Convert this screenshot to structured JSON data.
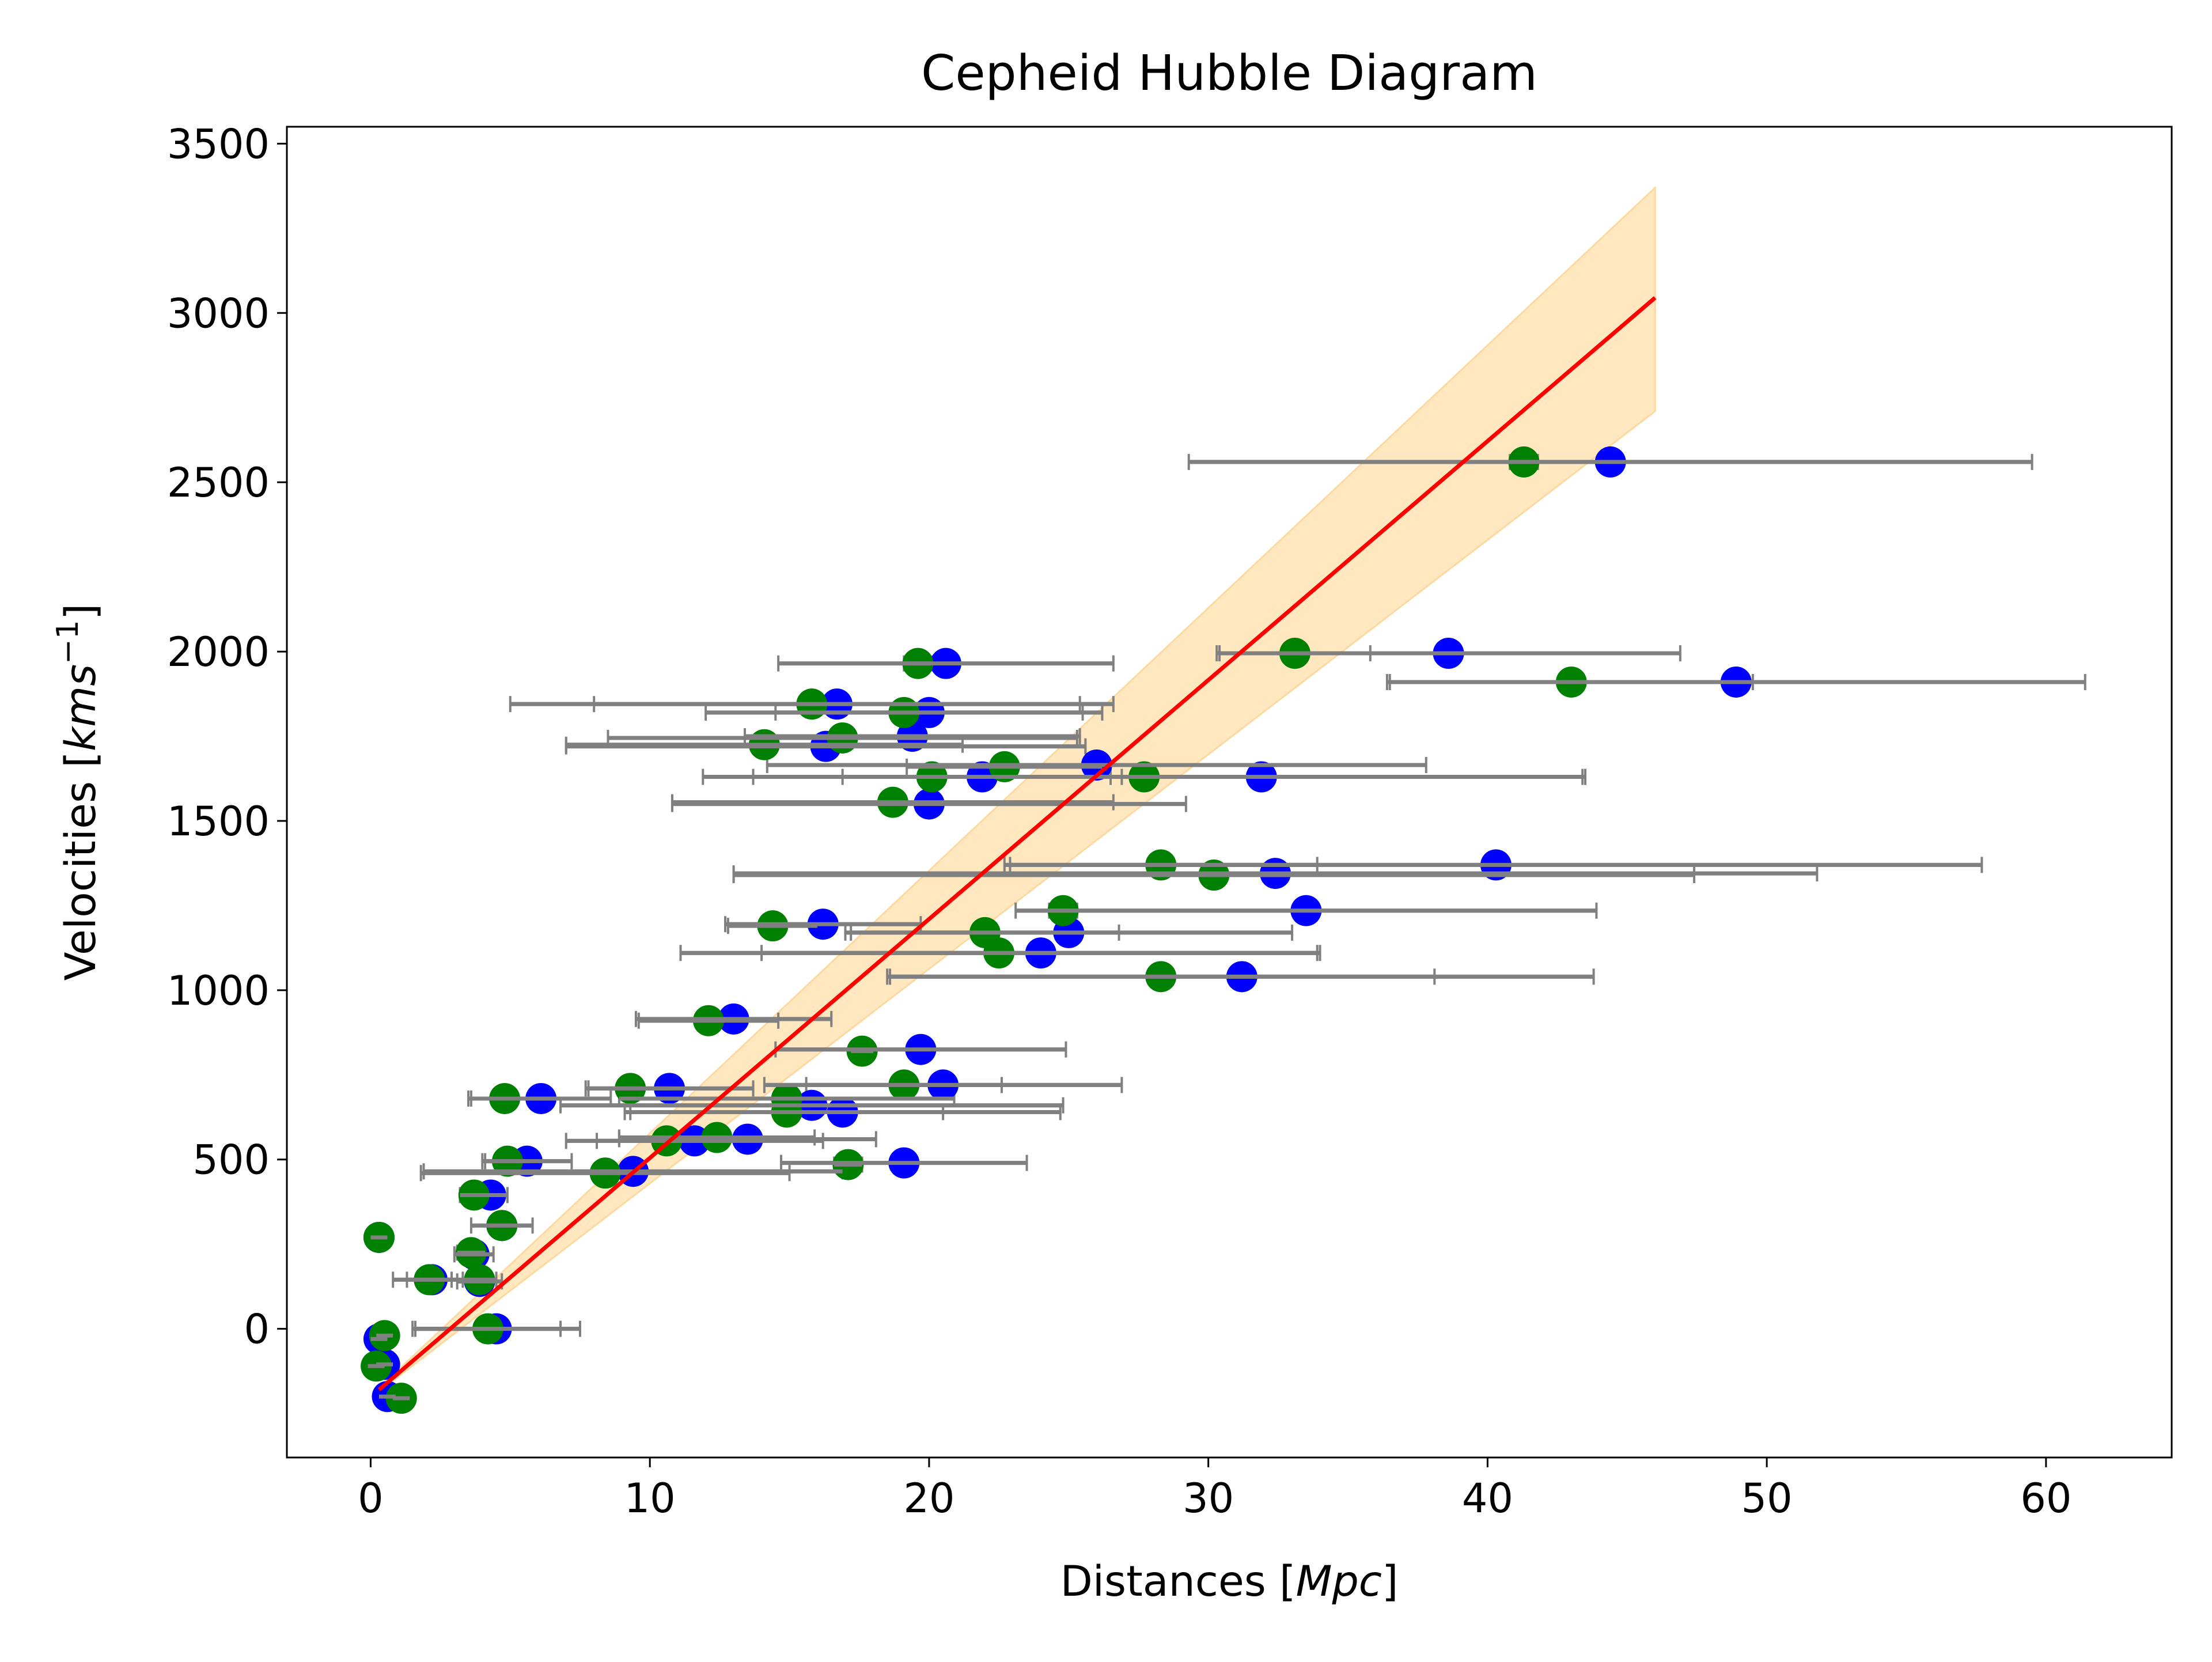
{
  "chart_data": {
    "type": "scatter",
    "title": "Cepheid Hubble Diagram",
    "xlabel": "Distances [",
    "xlabel_unit": "Mpc",
    "xlabel_close": "]",
    "ylabel": "Velocities [",
    "ylabel_unit": "kms",
    "ylabel_sup": "−1",
    "ylabel_close": "]",
    "xlim": [
      -3,
      64.5
    ],
    "ylim": [
      -380,
      3550
    ],
    "xticks": [
      0,
      10,
      20,
      30,
      40,
      50,
      60
    ],
    "yticks": [
      0,
      500,
      1000,
      1500,
      2000,
      2500,
      3000,
      3500
    ],
    "grid": false,
    "legend": "none",
    "colors": {
      "set_a": "#0000ff",
      "set_b": "#008000",
      "errorbar": "#808080",
      "fit_line": "#ff0000",
      "band": "#ffe7bf",
      "band_edge": "#fdd9a0"
    },
    "fit_line": {
      "x": [
        0.3,
        46.0
      ],
      "y": [
        -180,
        3045
      ]
    },
    "confidence_band": {
      "x": [
        0.3,
        46.0
      ],
      "lower": [
        -185,
        2710
      ],
      "upper": [
        -175,
        3370
      ]
    },
    "series": [
      {
        "color_key": "set_a",
        "points": [
          [
            0.6,
            -200,
            0.3
          ],
          [
            0.5,
            -105,
            0.3
          ],
          [
            0.3,
            -30,
            0.3
          ],
          [
            0.3,
            270,
            0.3
          ],
          [
            2.2,
            145,
            1.4
          ],
          [
            3.9,
            140,
            0.8
          ],
          [
            3.7,
            220,
            0.7
          ],
          [
            4.5,
            0,
            3.0
          ],
          [
            4.7,
            305,
            1.1
          ],
          [
            4.3,
            395,
            0.6
          ],
          [
            5.6,
            495,
            1.6
          ],
          [
            9.4,
            465,
            7.5
          ],
          [
            6.1,
            680,
            2.5
          ],
          [
            10.7,
            710,
            3.0
          ],
          [
            11.6,
            555,
            4.6
          ],
          [
            13.5,
            560,
            4.6
          ],
          [
            15.8,
            660,
            9.0
          ],
          [
            16.9,
            640,
            7.8
          ],
          [
            20.5,
            720,
            6.4
          ],
          [
            19.1,
            490,
            4.4
          ],
          [
            19.7,
            825,
            5.2
          ],
          [
            13.0,
            915,
            3.5
          ],
          [
            16.2,
            1195,
            3.5
          ],
          [
            24.0,
            1110,
            10.0
          ],
          [
            25.0,
            1170,
            8.0
          ],
          [
            33.5,
            1235,
            10.4
          ],
          [
            31.2,
            1040,
            12.6
          ],
          [
            32.4,
            1345,
            19.4
          ],
          [
            40.3,
            1370,
            17.4
          ],
          [
            20.0,
            1550,
            9.2
          ],
          [
            21.9,
            1630,
            5.0
          ],
          [
            26.0,
            1665,
            11.8
          ],
          [
            31.9,
            1630,
            11.5
          ],
          [
            16.3,
            1720,
            9.3
          ],
          [
            19.4,
            1750,
            6.0
          ],
          [
            16.7,
            1845,
            8.7
          ],
          [
            20.0,
            1820,
            5.5
          ],
          [
            20.6,
            1965,
            6.0
          ],
          [
            38.6,
            1995,
            8.3
          ],
          [
            48.9,
            1910,
            12.5
          ],
          [
            44.4,
            2560,
            15.1
          ]
        ]
      },
      {
        "color_key": "set_b",
        "points": [
          [
            1.1,
            -205,
            0.3
          ],
          [
            0.2,
            -110,
            0.3
          ],
          [
            0.5,
            -20,
            0.3
          ],
          [
            0.3,
            270,
            0.3
          ],
          [
            2.1,
            145,
            0.8
          ],
          [
            3.9,
            145,
            0.6
          ],
          [
            3.6,
            225,
            0.5
          ],
          [
            4.2,
            0,
            2.6
          ],
          [
            4.7,
            305,
            0.4
          ],
          [
            3.7,
            395,
            0.5
          ],
          [
            4.9,
            495,
            0.8
          ],
          [
            8.4,
            460,
            6.6
          ],
          [
            4.8,
            680,
            1.3
          ],
          [
            9.3,
            710,
            1.5
          ],
          [
            10.6,
            555,
            2.5
          ],
          [
            12.4,
            565,
            3.5
          ],
          [
            14.9,
            640,
            5.6
          ],
          [
            14.9,
            680,
            6.0
          ],
          [
            19.1,
            720,
            3.5
          ],
          [
            17.1,
            485,
            0.5
          ],
          [
            17.6,
            820,
            0.4
          ],
          [
            12.1,
            910,
            2.5
          ],
          [
            14.4,
            1190,
            1.6
          ],
          [
            22.5,
            1110,
            11.4
          ],
          [
            22.0,
            1170,
            4.8
          ],
          [
            24.8,
            1235,
            0.5
          ],
          [
            28.3,
            1040,
            9.8
          ],
          [
            30.2,
            1340,
            17.2
          ],
          [
            28.3,
            1370,
            5.6
          ],
          [
            18.7,
            1555,
            7.9
          ],
          [
            20.1,
            1630,
            6.4
          ],
          [
            22.7,
            1660,
            3.5
          ],
          [
            27.7,
            1630,
            15.8
          ],
          [
            14.1,
            1725,
            7.1
          ],
          [
            16.9,
            1745,
            8.4
          ],
          [
            15.8,
            1845,
            10.8
          ],
          [
            19.1,
            1820,
            7.1
          ],
          [
            19.6,
            1965,
            0.5
          ],
          [
            33.1,
            1995,
            2.7
          ],
          [
            43.0,
            1910,
            6.5
          ],
          [
            41.3,
            2560,
            0.5
          ]
        ]
      }
    ]
  }
}
